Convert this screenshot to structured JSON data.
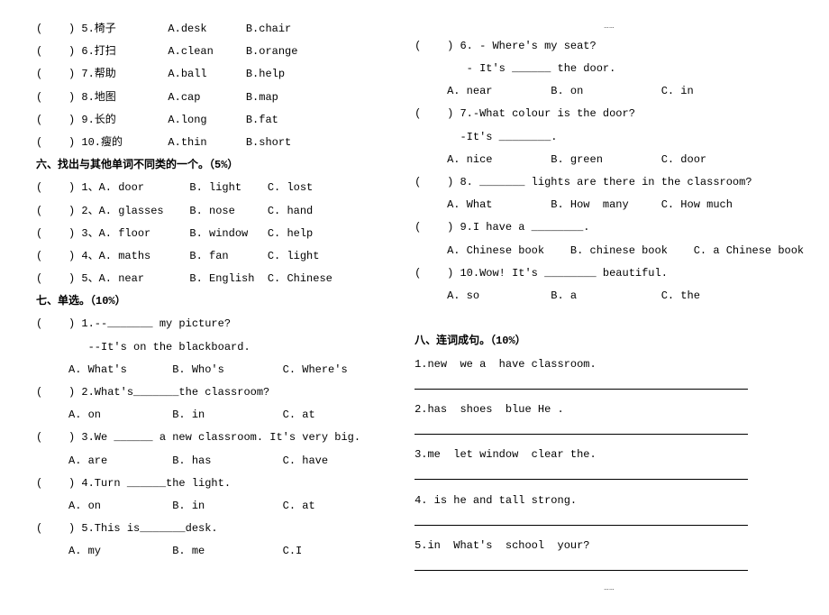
{
  "col1": {
    "vocab": [
      {
        "n": "5",
        "w": "椅子",
        "a": "A.desk",
        "b": "B.chair"
      },
      {
        "n": "6",
        "w": "打扫",
        "a": "A.clean",
        "b": "B.orange"
      },
      {
        "n": "7",
        "w": "帮助",
        "a": "A.ball",
        "b": "B.help"
      },
      {
        "n": "8",
        "w": "地图",
        "a": "A.cap",
        "b": "B.map"
      },
      {
        "n": "9",
        "w": "长的",
        "a": "A.long",
        "b": "B.fat"
      },
      {
        "n": "10",
        "w": "瘦的",
        "a": "A.thin",
        "b": "B.short"
      }
    ],
    "h6": "六、找出与其他单词不同类的一个。（5%）",
    "odd": [
      {
        "n": "1",
        "a": "A. door",
        "b": "B. light",
        "c": "C. lost"
      },
      {
        "n": "2",
        "a": "A. glasses",
        "b": "B. nose",
        "c": "C. hand"
      },
      {
        "n": "3",
        "a": "A. floor",
        "b": "B. window",
        "c": "C. help"
      },
      {
        "n": "4",
        "a": "A. maths",
        "b": "B. fan",
        "c": "C. light"
      },
      {
        "n": "5",
        "a": "A. near",
        "b": "B. English",
        "c": "C. Chinese"
      }
    ],
    "h7": "七、单选。（10%）",
    "q1_line1": "(    ) 1.--_______ my picture?",
    "q1_line2": "        --It's on the blackboard.",
    "q1_opts": "     A. What's       B. Who's         C. Where's",
    "q2": "(    ) 2.What's_______the classroom?",
    "q2_opts": "     A. on           B. in            C. at",
    "q3": "(    ) 3.We ______ a new classroom. It's very big.",
    "q3_opts": "     A. are          B. has           C. have",
    "q4": "(    ) 4.Turn ______the light.",
    "q4_opts": "     A. on           B. in            C. at",
    "q5": "(    ) 5.This is_______desk.",
    "q5_opts": "     A. my           B. me            C.I"
  },
  "col2": {
    "dots": "……",
    "q6_line1": "(    ) 6. - Where's my seat?",
    "q6_line2": "        - It's ______ the door.",
    "q6_opts": "     A. near         B. on            C. in",
    "q7_line1": "(    ) 7.-What colour is the door?",
    "q7_line2": "       -It's ________.",
    "q7_opts": "     A. nice         B. green         C. door",
    "q8": "(    ) 8. _______ lights are there in the classroom?",
    "q8_opts": "     A. What         B. How  many     C. How much",
    "q9": "(    ) 9.I have a ________.",
    "q9_opts": "     A. Chinese book    B. chinese book    C. a Chinese book",
    "q10": "(    ) 10.Wow! It's ________ beautiful.",
    "q10_opts": "     A. so           B. a             C. the",
    "h8": "八、连词成句。（10%）",
    "s1": "1.new  we a  have classroom.",
    "s2": "2.has  shoes  blue He .",
    "s3": "3.me  let window  clear the.",
    "s4": "4. is he and tall strong.",
    "s5": "5.in  What's  school  your?"
  }
}
